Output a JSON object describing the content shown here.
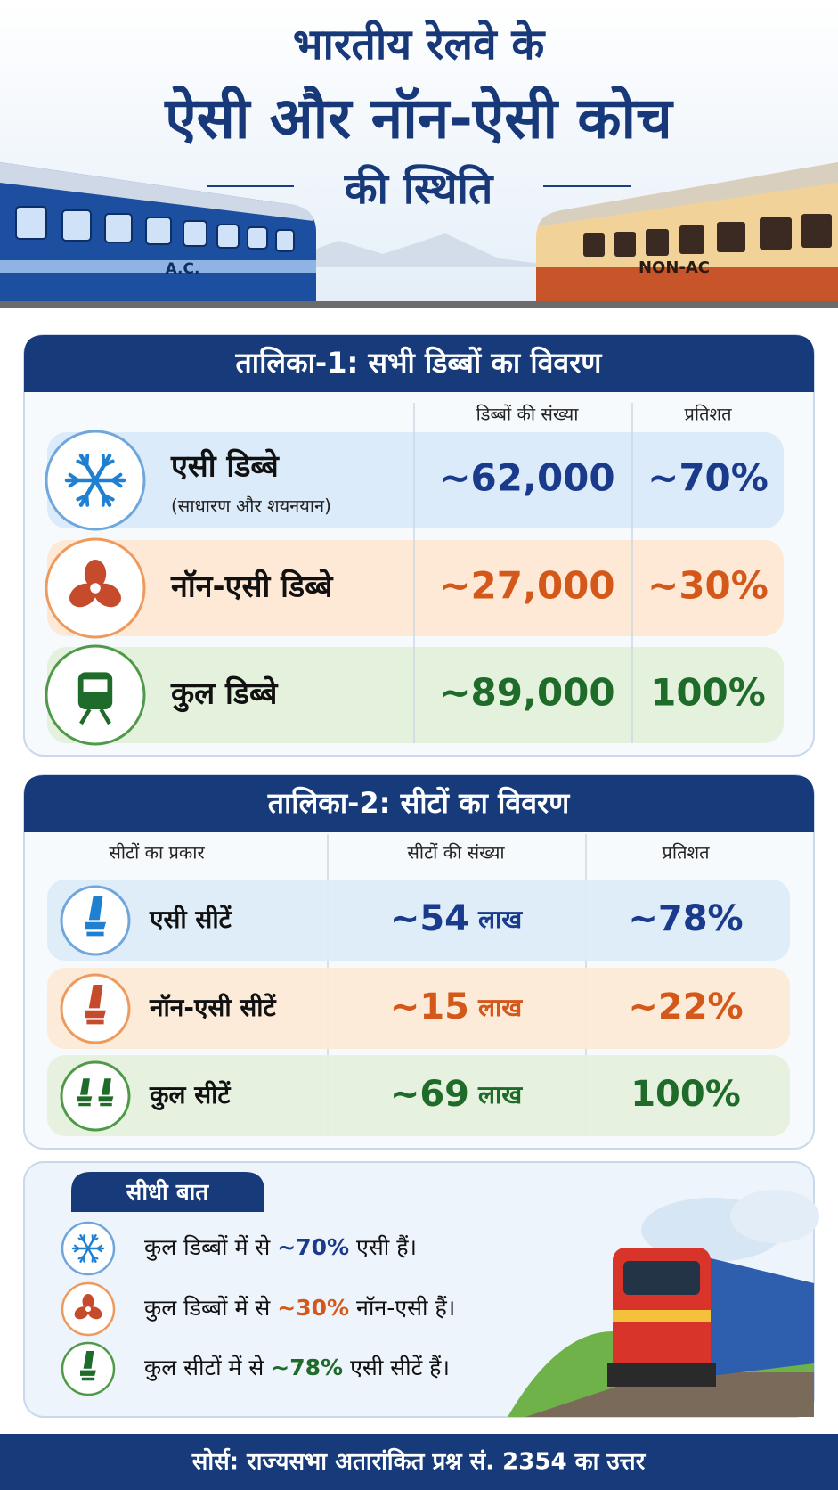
{
  "header": {
    "title_lines": [
      "भारतीय रेलवे के",
      "ऐसी और नॉन-ऐसी कोच",
      "की स्थिति"
    ],
    "left_train_label": "A.C.",
    "right_train_label": "NON-AC"
  },
  "table1": {
    "title": "तालिका-1: सभी डिब्बों का विवरण",
    "columns": [
      "डिब्बों की संख्या",
      "प्रतिशत"
    ],
    "rows": [
      {
        "label": "एसी डिब्बे",
        "sublabel": "(साधारण और शयनयान)",
        "count": "~62,000",
        "percent": "~70%"
      },
      {
        "label": "नॉन-एसी डिब्बे",
        "count": "~27,000",
        "percent": "~30%"
      },
      {
        "label": "कुल डिब्बे",
        "count": "~89,000",
        "percent": "100%"
      }
    ]
  },
  "table2": {
    "title": "तालिका-2: सीटों का विवरण",
    "columns": [
      "सीटों का प्रकार",
      "सीटों की संख्या",
      "प्रतिशत"
    ],
    "rows": [
      {
        "label": "एसी सीटें",
        "count": "~54",
        "unit": "लाख",
        "percent": "~78%"
      },
      {
        "label": "नॉन-एसी सीटें",
        "count": "~15",
        "unit": "लाख",
        "percent": "~22%"
      },
      {
        "label": "कुल सीटें",
        "count": "~69",
        "unit": "लाख",
        "percent": "100%"
      }
    ]
  },
  "summary": {
    "title": "सीधी बात",
    "items": [
      {
        "prefix": "कुल डिब्बों में से",
        "highlight": "~70%",
        "suffix": "एसी हैं।"
      },
      {
        "prefix": "कुल डिब्बों में से",
        "highlight": "~30%",
        "suffix": "नॉन-एसी हैं।"
      },
      {
        "prefix": "कुल सीटों में से",
        "highlight": "~78%",
        "suffix": "एसी सीटें हैं।"
      }
    ]
  },
  "footer": {
    "source": "सोर्स: राज्यसभा अतारांकित प्रश्न सं. 2354 का उत्तर"
  }
}
